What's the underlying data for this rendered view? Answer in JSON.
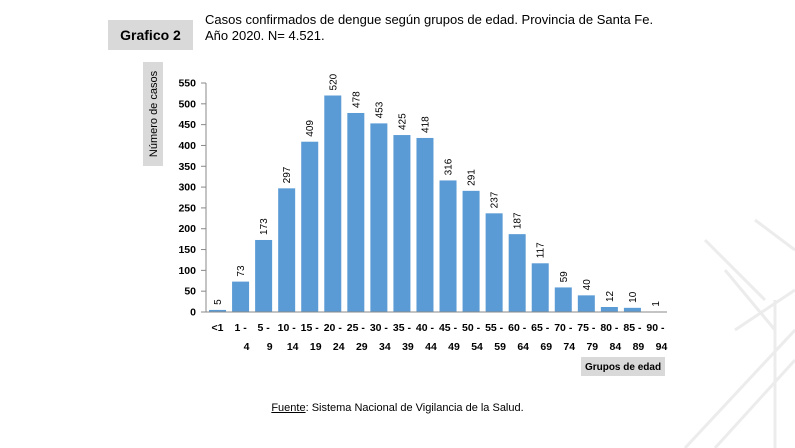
{
  "header": {
    "figure_label": "Grafico 2",
    "title_line1": "Casos confirmados de dengue según grupos de edad. Provincia de Santa Fe.",
    "title_line2": "Año 2020. N= 4.521."
  },
  "footer": {
    "source_label": "Fuente",
    "source_text": ": Sistema Nacional de Vigilancia de la Salud."
  },
  "chart_data": {
    "type": "bar",
    "title": "Casos confirmados de dengue según grupos de edad. Provincia de Santa Fe. Año 2020. N= 4.521.",
    "ylabel": "Número de casos",
    "xlabel": "Grupos de edad",
    "ylim": [
      0,
      550
    ],
    "yticks": [
      0,
      50,
      100,
      150,
      200,
      250,
      300,
      350,
      400,
      450,
      500,
      550
    ],
    "categories": [
      {
        "top": "<1",
        "bottom": ""
      },
      {
        "top": "1 -",
        "bottom": "4"
      },
      {
        "top": "5 -",
        "bottom": "9"
      },
      {
        "top": "10 -",
        "bottom": "14"
      },
      {
        "top": "15 -",
        "bottom": "19"
      },
      {
        "top": "20 -",
        "bottom": "24"
      },
      {
        "top": "25 -",
        "bottom": "29"
      },
      {
        "top": "30 -",
        "bottom": "34"
      },
      {
        "top": "35 -",
        "bottom": "39"
      },
      {
        "top": "40 -",
        "bottom": "44"
      },
      {
        "top": "45 -",
        "bottom": "49"
      },
      {
        "top": "50 -",
        "bottom": "54"
      },
      {
        "top": "55 -",
        "bottom": "59"
      },
      {
        "top": "60 -",
        "bottom": "64"
      },
      {
        "top": "65 -",
        "bottom": "69"
      },
      {
        "top": "70 -",
        "bottom": "74"
      },
      {
        "top": "75 -",
        "bottom": "79"
      },
      {
        "top": "80 -",
        "bottom": "84"
      },
      {
        "top": "85 -",
        "bottom": "89"
      },
      {
        "top": "90 -",
        "bottom": "94"
      }
    ],
    "values": [
      5,
      73,
      173,
      297,
      409,
      520,
      478,
      453,
      425,
      418,
      316,
      291,
      237,
      187,
      117,
      59,
      40,
      12,
      10,
      1
    ],
    "grid": false,
    "bar_color": "#5b9bd5"
  }
}
